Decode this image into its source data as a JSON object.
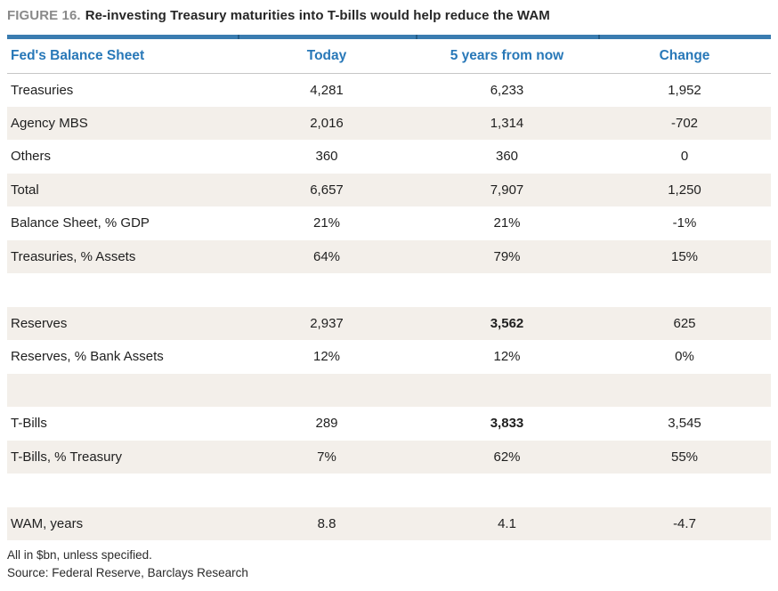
{
  "figure": {
    "label": "FIGURE 16.",
    "title": "Re-investing Treasury maturities into T-bills would help reduce the WAM"
  },
  "chart_data": {
    "type": "table",
    "columns": [
      "Fed's Balance Sheet",
      "Today",
      "5 years from now",
      "Change"
    ],
    "rows": [
      {
        "label": "Treasuries",
        "today": "4,281",
        "five_years": "6,233",
        "change": "1,952"
      },
      {
        "label": "Agency MBS",
        "today": "2,016",
        "five_years": "1,314",
        "change": "-702"
      },
      {
        "label": "Others",
        "today": "360",
        "five_years": "360",
        "change": "0"
      },
      {
        "label": "Total",
        "today": "6,657",
        "five_years": "7,907",
        "change": "1,250"
      },
      {
        "label": "Balance Sheet, % GDP",
        "today": "21%",
        "five_years": "21%",
        "change": "-1%"
      },
      {
        "label": "Treasuries, % Assets",
        "today": "64%",
        "five_years": "79%",
        "change": "15%"
      },
      {
        "label": "",
        "today": "",
        "five_years": "",
        "change": ""
      },
      {
        "label": "Reserves",
        "today": "2,937",
        "five_years": "3,562",
        "change": "625"
      },
      {
        "label": "Reserves, % Bank Assets",
        "today": "12%",
        "five_years": "12%",
        "change": "0%"
      },
      {
        "label": "",
        "today": "",
        "five_years": "",
        "change": ""
      },
      {
        "label": "T-Bills",
        "today": "289",
        "five_years": "3,833",
        "change": "3,545"
      },
      {
        "label": "T-Bills, % Treasury",
        "today": "7%",
        "five_years": "62%",
        "change": "55%"
      },
      {
        "label": "",
        "today": "",
        "five_years": "",
        "change": ""
      },
      {
        "label": "WAM, years",
        "today": "8.8",
        "five_years": "4.1",
        "change": "-4.7"
      }
    ],
    "bold_cells": [
      "rows.7.five_years",
      "rows.10.five_years"
    ]
  },
  "footnotes": {
    "note": "All in $bn, unless specified.",
    "source": "Source: Federal Reserve, Barclays Research"
  },
  "colors": {
    "header_blue": "#2878b8",
    "bar_blue": "#3a7cb0",
    "bar_tick_blue": "#235c88",
    "row_alt_beige": "#f3efea",
    "figure_label_gray": "#8a8a8a",
    "text_dark": "#1f1f1f"
  }
}
